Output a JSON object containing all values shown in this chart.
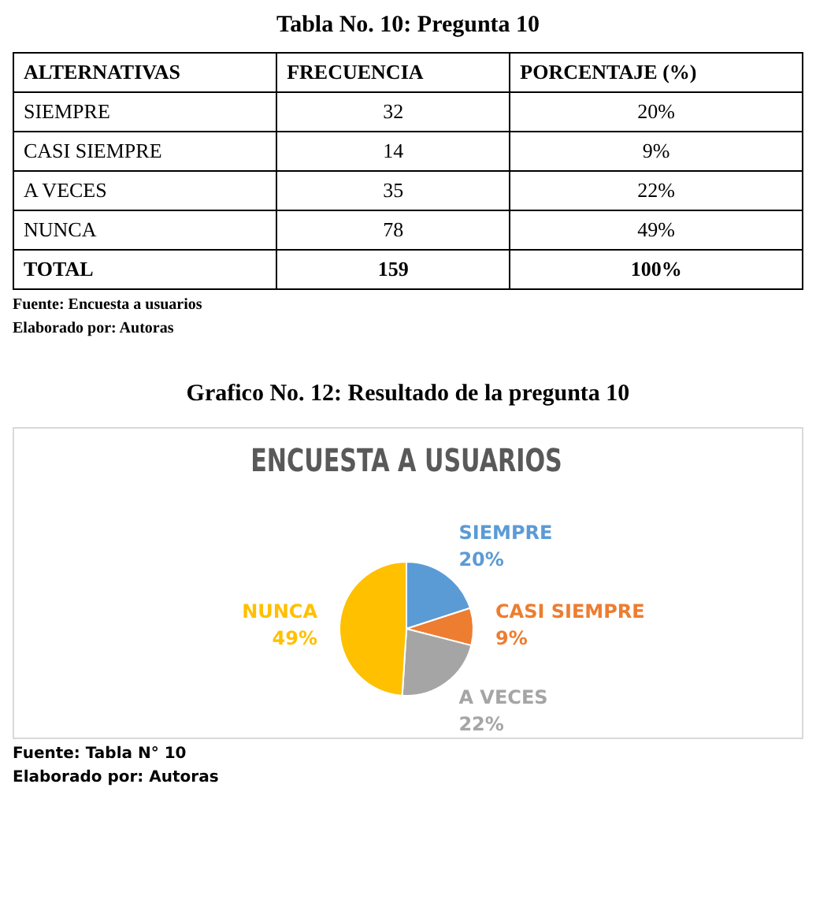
{
  "chart_data": [
    {
      "type": "other",
      "title": "Tabla No.  10: Pregunta 10",
      "xlabel": "ALTERNATIVAS",
      "categories": [
        "SIEMPRE",
        "CASI SIEMPRE",
        "A VECES",
        "NUNCA"
      ],
      "series": [
        {
          "name": "FRECUENCIA",
          "values": [
            32,
            14,
            35,
            78
          ]
        },
        {
          "name": "PORCENTAJE (%)",
          "values": [
            20,
            9,
            22,
            49
          ],
          "value_labels": [
            "20%",
            "9%",
            "22%",
            "49%"
          ]
        }
      ],
      "totals": [
        "159",
        "100%"
      ],
      "data_labels": true,
      "annotations": [
        "TOTAL",
        "Fuente: Encuesta a usuarios",
        "Elaborado por: Autoras"
      ]
    },
    {
      "type": "pie",
      "title": "Grafico No.  12: Resultado de la pregunta 10",
      "subtitle": "ENCUESTA A USUARIOS",
      "categories": [
        "SIEMPRE",
        "CASI SIEMPRE",
        "A VECES",
        "NUNCA"
      ],
      "values": [
        20,
        9,
        22,
        49
      ],
      "colors": [
        "#5b9bd5",
        "#ed7d31",
        "#a5a5a5",
        "#ffc000"
      ],
      "value_labels": [
        "20%",
        "9%",
        "22%",
        "49%"
      ],
      "legend": false,
      "annotations": [
        "Fuente: Tabla N° 10",
        "Elaborado por: Autoras"
      ]
    }
  ]
}
